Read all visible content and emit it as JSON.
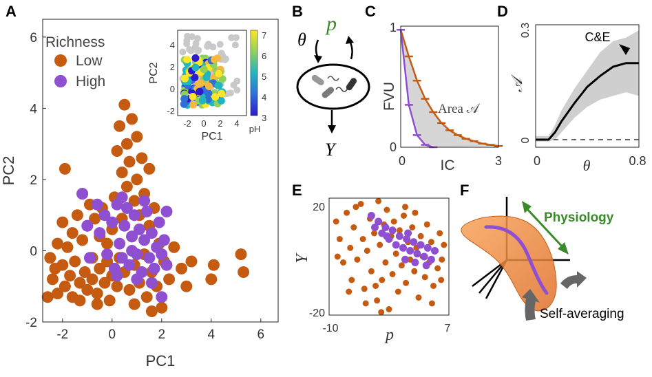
{
  "panel_letters": [
    "A",
    "B",
    "C",
    "D",
    "E",
    "F"
  ],
  "colors": {
    "low": "#c55a11",
    "high": "#8e4fd0",
    "gray": "#bdbdbd",
    "green": "#3a8a2a",
    "band": "#cfcfcf"
  },
  "panelA": {
    "legend": {
      "title": "Richness",
      "low": "Low",
      "high": "High"
    },
    "inset": {
      "xlabel": "PC1",
      "ylabel": "PC2",
      "colorbar_label": "pH",
      "colorbar_ticks": [
        "7",
        "6",
        "5",
        "4",
        "3"
      ],
      "xticks": [
        "-2",
        "0",
        "2",
        "4"
      ],
      "yticks": [
        "4",
        "2",
        "0",
        "-2"
      ]
    }
  },
  "panelB": {
    "theta": "θ",
    "p": "p",
    "Y": "Y"
  },
  "panelD": {
    "annotation": "C&E"
  },
  "panelE": {},
  "panelF": {
    "physiology": "Physiology",
    "self_averaging": "Self-averaging"
  },
  "chart_data": [
    {
      "panel": "A",
      "type": "scatter",
      "xlabel": "PC1",
      "ylabel": "PC2",
      "xlim": [
        -2.8,
        6.7
      ],
      "ylim": [
        -2.0,
        6.5
      ],
      "xticks": [
        "-2",
        "0",
        "2",
        "4",
        "6"
      ],
      "yticks": [
        "6",
        "4",
        "2",
        "0",
        "-2"
      ],
      "series": [
        {
          "name": "Low",
          "color": "#c55a11",
          "points": [
            [
              -2.5,
              -0.2
            ],
            [
              -2.4,
              -0.8
            ],
            [
              -2.3,
              -0.5
            ],
            [
              -2.2,
              0.2
            ],
            [
              -2.2,
              -1.2
            ],
            [
              -2.0,
              0.8
            ],
            [
              -2.0,
              -0.4
            ],
            [
              -1.9,
              -1.0
            ],
            [
              -1.8,
              0.1
            ],
            [
              -1.7,
              -0.7
            ],
            [
              -1.6,
              0.5
            ],
            [
              -1.6,
              -1.3
            ],
            [
              -1.5,
              -0.3
            ],
            [
              -1.4,
              1.0
            ],
            [
              -1.3,
              -0.9
            ],
            [
              -1.2,
              0.3
            ],
            [
              -1.2,
              1.6
            ],
            [
              -1.1,
              -0.6
            ],
            [
              -1.0,
              0.7
            ],
            [
              -1.0,
              -1.1
            ],
            [
              -0.9,
              1.3
            ],
            [
              -0.8,
              -0.2
            ],
            [
              -0.8,
              -0.8
            ],
            [
              -0.7,
              0.9
            ],
            [
              -0.6,
              -1.2
            ],
            [
              -0.5,
              0.4
            ],
            [
              -0.5,
              -0.5
            ],
            [
              -0.4,
              1.2
            ],
            [
              -0.3,
              -0.9
            ],
            [
              -0.2,
              0.2
            ],
            [
              -0.2,
              -0.3
            ],
            [
              -0.1,
              -1.4
            ],
            [
              0.0,
              0.6
            ],
            [
              0.0,
              -0.7
            ],
            [
              0.1,
              1.5
            ],
            [
              0.2,
              -1.0
            ],
            [
              0.2,
              2.8
            ],
            [
              0.3,
              -0.2
            ],
            [
              0.3,
              3.5
            ],
            [
              0.4,
              0.9
            ],
            [
              0.4,
              2.2
            ],
            [
              0.5,
              -0.6
            ],
            [
              0.5,
              4.1
            ],
            [
              0.6,
              1.8
            ],
            [
              0.6,
              3.0
            ],
            [
              0.7,
              -1.1
            ],
            [
              0.7,
              2.5
            ],
            [
              0.8,
              0.4
            ],
            [
              0.8,
              3.7
            ],
            [
              0.9,
              1.4
            ],
            [
              0.9,
              -0.4
            ],
            [
              1.0,
              2.0
            ],
            [
              1.0,
              3.2
            ],
            [
              1.1,
              -0.9
            ],
            [
              1.1,
              1.0
            ],
            [
              1.2,
              2.6
            ],
            [
              1.3,
              -0.1
            ],
            [
              1.3,
              1.6
            ],
            [
              1.4,
              -1.3
            ],
            [
              1.5,
              0.7
            ],
            [
              1.5,
              2.3
            ],
            [
              1.6,
              -0.6
            ],
            [
              1.7,
              1.2
            ],
            [
              1.8,
              -1.0
            ],
            [
              1.9,
              0.2
            ],
            [
              2.0,
              -1.6
            ],
            [
              2.1,
              -0.3
            ],
            [
              2.3,
              -0.8
            ],
            [
              2.5,
              0.1
            ],
            [
              2.8,
              -0.5
            ],
            [
              3.0,
              -1.0
            ],
            [
              3.2,
              -0.3
            ],
            [
              4.0,
              -0.8
            ],
            [
              4.1,
              -0.4
            ],
            [
              5.2,
              -0.1
            ],
            [
              5.3,
              -0.6
            ],
            [
              -1.9,
              2.3
            ],
            [
              -2.6,
              -1.3
            ],
            [
              -0.6,
              -1.5
            ],
            [
              0.9,
              -1.5
            ],
            [
              1.6,
              -1.7
            ],
            [
              -1.3,
              -1.4
            ]
          ]
        },
        {
          "name": "High",
          "color": "#8e4fd0",
          "points": [
            [
              -1.2,
              1.6
            ],
            [
              -1.0,
              0.7
            ],
            [
              -0.9,
              -0.2
            ],
            [
              -0.6,
              1.3
            ],
            [
              -0.5,
              0.5
            ],
            [
              -0.3,
              1.0
            ],
            [
              -0.2,
              -0.1
            ],
            [
              0.0,
              0.8
            ],
            [
              0.1,
              -0.5
            ],
            [
              0.2,
              1.3
            ],
            [
              0.3,
              0.2
            ],
            [
              0.4,
              -0.2
            ],
            [
              0.5,
              0.7
            ],
            [
              0.6,
              1.2
            ],
            [
              0.7,
              -0.4
            ],
            [
              0.8,
              0.4
            ],
            [
              0.9,
              1.0
            ],
            [
              1.0,
              -0.1
            ],
            [
              1.1,
              0.6
            ],
            [
              1.2,
              -0.6
            ],
            [
              1.3,
              0.3
            ],
            [
              1.4,
              1.1
            ],
            [
              1.5,
              -0.2
            ],
            [
              1.6,
              0.5
            ],
            [
              1.7,
              -0.5
            ],
            [
              1.8,
              0.1
            ],
            [
              1.9,
              0.8
            ],
            [
              2.0,
              -0.1
            ],
            [
              2.1,
              0.3
            ],
            [
              2.2,
              -0.4
            ],
            [
              0.2,
              -0.7
            ],
            [
              1.0,
              -0.8
            ],
            [
              1.6,
              -0.9
            ],
            [
              2.0,
              -1.3
            ],
            [
              0.4,
              1.5
            ],
            [
              1.3,
              1.4
            ],
            [
              2.2,
              1.1
            ],
            [
              0.8,
              0.0
            ]
          ]
        }
      ]
    },
    {
      "panel": "C",
      "type": "line",
      "xlabel": "IC",
      "ylabel": "FVU",
      "xlim": [
        0,
        3
      ],
      "ylim": [
        0,
        1
      ],
      "xticks": [
        "0",
        "3"
      ],
      "yticks": [
        "1",
        "0"
      ],
      "annotation": "Area 𝒜",
      "series": [
        {
          "color": "#c55a11",
          "x": [
            0,
            0.25,
            0.5,
            0.75,
            1.0,
            1.25,
            1.5,
            1.75,
            2.0,
            2.25,
            2.5,
            2.75,
            3.0
          ],
          "y": [
            0.97,
            0.75,
            0.55,
            0.4,
            0.29,
            0.2,
            0.14,
            0.1,
            0.07,
            0.05,
            0.03,
            0.02,
            0.01
          ]
        },
        {
          "color": "#8e4fd0",
          "x": [
            0,
            0.25,
            0.5,
            0.75,
            1.0
          ],
          "y": [
            0.97,
            0.35,
            0.1,
            0.02,
            0.0
          ]
        }
      ]
    },
    {
      "panel": "D",
      "type": "line",
      "xlabel": "θ",
      "ylabel": "𝒜",
      "xlim": [
        0,
        0.8
      ],
      "ylim": [
        0,
        0.3
      ],
      "xticks": [
        "0",
        "0.8"
      ],
      "yticks": [
        "0.3",
        "0"
      ],
      "series": [
        {
          "color": "#000000",
          "x": [
            0,
            0.05,
            0.1,
            0.15,
            0.2,
            0.3,
            0.4,
            0.5,
            0.6,
            0.7,
            0.8
          ],
          "y": [
            0.0,
            0.0,
            0.0,
            0.02,
            0.05,
            0.1,
            0.145,
            0.175,
            0.2,
            0.21,
            0.21
          ]
        }
      ],
      "band_low": [
        -0.005,
        -0.005,
        -0.005,
        0.0,
        0.02,
        0.06,
        0.09,
        0.11,
        0.12,
        0.13,
        0.12
      ],
      "band_high": [
        0.01,
        0.01,
        0.01,
        0.04,
        0.08,
        0.14,
        0.19,
        0.24,
        0.27,
        0.28,
        0.3
      ]
    },
    {
      "panel": "E",
      "type": "scatter",
      "xlabel": "p",
      "ylabel": "Y",
      "xlim": [
        -10,
        7
      ],
      "ylim": [
        -20,
        20
      ],
      "xticks": [
        "-10",
        "7"
      ],
      "yticks": [
        "20",
        "-20"
      ],
      "series": [
        {
          "name": "Low",
          "color": "#c55a11",
          "points": [
            [
              -9,
              12
            ],
            [
              -8.5,
              6
            ],
            [
              -8,
              -2
            ],
            [
              -7.5,
              15
            ],
            [
              -7,
              3
            ],
            [
              -6.8,
              -8
            ],
            [
              -6.5,
              10
            ],
            [
              -6,
              -1
            ],
            [
              -5.5,
              18
            ],
            [
              -5.2,
              6
            ],
            [
              -5,
              -11
            ],
            [
              -4.6,
              2
            ],
            [
              -4.2,
              13
            ],
            [
              -4,
              -5
            ],
            [
              -3.6,
              8
            ],
            [
              -3.2,
              -15
            ],
            [
              -3,
              19
            ],
            [
              -2.8,
              4
            ],
            [
              -2.5,
              -8
            ],
            [
              -2.2,
              11
            ],
            [
              -2,
              -2
            ],
            [
              -1.8,
              16
            ],
            [
              -1.5,
              -18
            ],
            [
              -1.2,
              7
            ],
            [
              -1,
              -6
            ],
            [
              -0.8,
              12
            ],
            [
              -0.5,
              1
            ],
            [
              -0.2,
              -12
            ],
            [
              0,
              9
            ],
            [
              0.3,
              -3
            ],
            [
              0.6,
              14
            ],
            [
              0.9,
              -9
            ],
            [
              1.2,
              5
            ],
            [
              1.5,
              -1
            ],
            [
              1.8,
              10
            ],
            [
              2.1,
              -5
            ],
            [
              2.4,
              3
            ],
            [
              2.7,
              -14
            ],
            [
              3,
              7
            ],
            [
              3.3,
              0
            ],
            [
              3.6,
              -7
            ],
            [
              3.9,
              11
            ],
            [
              4.2,
              -2
            ],
            [
              4.5,
              5
            ],
            [
              4.8,
              -10
            ],
            [
              5.1,
              2
            ],
            [
              5.4,
              -4
            ],
            [
              5.7,
              8
            ],
            [
              6,
              -1
            ],
            [
              6.3,
              4
            ],
            [
              -7.2,
              -12
            ],
            [
              -6.2,
              17
            ],
            [
              -4.8,
              -16
            ],
            [
              -2.6,
              -19
            ],
            [
              0.8,
              17
            ],
            [
              2.2,
              15
            ],
            [
              4.6,
              -16
            ],
            [
              5.9,
              -8
            ],
            [
              -8.8,
              0
            ],
            [
              -3.4,
              -10
            ]
          ]
        },
        {
          "name": "High",
          "color": "#8e4fd0",
          "points": [
            [
              -4,
              14
            ],
            [
              -3.5,
              10
            ],
            [
              -3,
              12
            ],
            [
              -2.5,
              8
            ],
            [
              -2,
              10
            ],
            [
              -1.5,
              6
            ],
            [
              -1,
              9
            ],
            [
              -0.5,
              4
            ],
            [
              0,
              7
            ],
            [
              0.5,
              3
            ],
            [
              1,
              6
            ],
            [
              1.5,
              2
            ],
            [
              2,
              5
            ],
            [
              2.5,
              1
            ],
            [
              3,
              4
            ],
            [
              3.5,
              0
            ],
            [
              4,
              3
            ],
            [
              4.5,
              -1
            ],
            [
              5,
              2
            ],
            [
              2.2,
              -2
            ],
            [
              0.8,
              -1
            ],
            [
              -1.8,
              7
            ],
            [
              3.8,
              -3
            ],
            [
              1.2,
              8
            ]
          ]
        }
      ]
    }
  ]
}
